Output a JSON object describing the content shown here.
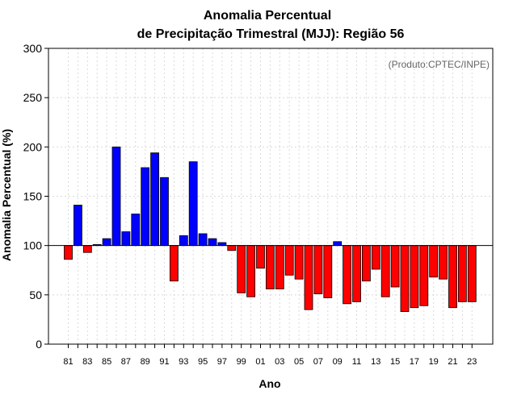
{
  "chart_data": {
    "type": "bar",
    "title_line1": "Anomalia Percentual",
    "title_line2": "de Precipitação Trimestral (MJJ): Região 56",
    "xlabel": "Ano",
    "ylabel": "Anomalia Percentual (%)",
    "credit": "(Produto:CPTEC/INPE)",
    "ylim": [
      0,
      300
    ],
    "yticks": [
      "0",
      "50",
      "100",
      "150",
      "200",
      "250",
      "300"
    ],
    "baseline": 100,
    "grid": true,
    "colors": {
      "above": "#0000ff",
      "below": "#ff0000",
      "edge": "#000000",
      "baseline": "#000000",
      "grid": "#d9d9d9"
    },
    "categories": [
      "81",
      "82",
      "83",
      "84",
      "85",
      "86",
      "87",
      "88",
      "89",
      "90",
      "91",
      "92",
      "93",
      "94",
      "95",
      "96",
      "97",
      "98",
      "99",
      "00",
      "01",
      "02",
      "03",
      "04",
      "05",
      "06",
      "07",
      "08",
      "09",
      "10",
      "11",
      "12",
      "13",
      "14",
      "15",
      "16",
      "17",
      "18",
      "19",
      "20",
      "21",
      "22",
      "23"
    ],
    "tick_labels": [
      "81",
      "83",
      "85",
      "87",
      "89",
      "91",
      "93",
      "95",
      "97",
      "99",
      "01",
      "03",
      "05",
      "07",
      "09",
      "11",
      "13",
      "15",
      "17",
      "19",
      "21",
      "23"
    ],
    "values": [
      86,
      141,
      93,
      101,
      107,
      200,
      114,
      132,
      179,
      194,
      169,
      64,
      110,
      185,
      112,
      107,
      103,
      95,
      52,
      48,
      77,
      56,
      56,
      70,
      66,
      35,
      51,
      47,
      104,
      41,
      43,
      64,
      76,
      48,
      58,
      33,
      37,
      39,
      68,
      66,
      37,
      43,
      43
    ]
  }
}
